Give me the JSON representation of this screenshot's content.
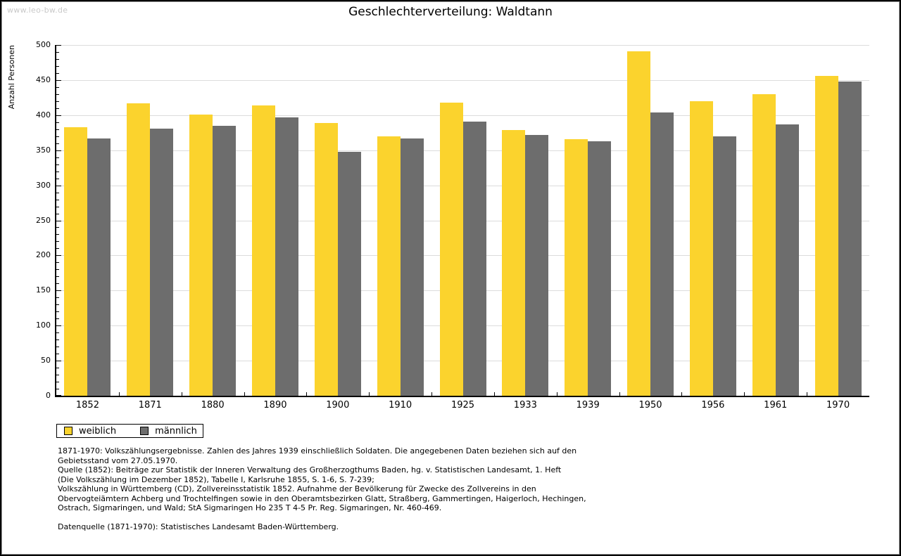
{
  "watermark": "www.leo-bw.de",
  "title": "Geschlechterverteilung: Waldtann",
  "chart_data": {
    "type": "bar",
    "title": "Geschlechterverteilung: Waldtann",
    "ylabel": "Anzahl Personen",
    "xlabel": "",
    "ylim": [
      0,
      500
    ],
    "ytick_major": 50,
    "ytick_minor": 10,
    "grid": true,
    "legend_position": "bottom-left",
    "categories": [
      "1852",
      "1871",
      "1880",
      "1890",
      "1900",
      "1910",
      "1925",
      "1933",
      "1939",
      "1950",
      "1956",
      "1961",
      "1970"
    ],
    "series": [
      {
        "name": "weiblich",
        "color": "#fbd32d",
        "values": [
          383,
          417,
          401,
          414,
          389,
          370,
          418,
          379,
          366,
          491,
          420,
          430,
          456
        ]
      },
      {
        "name": "männlich",
        "color": "#6d6d6d",
        "values": [
          367,
          381,
          385,
          397,
          348,
          367,
          391,
          372,
          363,
          404,
          370,
          387,
          448
        ]
      }
    ]
  },
  "legend": {
    "items": [
      {
        "label": "weiblich",
        "color": "#fbd32d"
      },
      {
        "label": "männlich",
        "color": "#6d6d6d"
      }
    ]
  },
  "footer": {
    "lines": [
      "1871-1970: Volkszählungsergebnisse. Zahlen des Jahres 1939 einschließlich Soldaten. Die angegebenen Daten beziehen sich auf den",
      "Gebietsstand vom 27.05.1970.",
      "Quelle (1852): Beiträge zur Statistik der Inneren Verwaltung des Großherzogthums Baden, hg. v. Statistischen Landesamt, 1. Heft",
      "(Die Volkszählung im Dezember 1852), Tabelle I, Karlsruhe 1855, S. 1-6, S. 7-239;",
      "Volkszählung in Württemberg (CD), Zollvereinsstatistik 1852. Aufnahme der Bevölkerung für Zwecke des Zollvereins in den",
      "Obervogteiämtern Achberg und Trochtelfingen sowie in den Oberamtsbezirken Glatt, Straßberg, Gammertingen, Haigerloch, Hechingen,",
      "Ostrach, Sigmaringen, und Wald; StA Sigmaringen Ho 235 T 4-5 Pr. Reg. Sigmaringen, Nr. 460-469."
    ],
    "datasource": "Datenquelle (1871-1970): Statistisches Landesamt Baden-Württemberg."
  },
  "colors": {
    "background": "#ffffff",
    "axis": "#000000",
    "gridline": "#dcdcdc",
    "watermark": "#c9c9c9"
  }
}
